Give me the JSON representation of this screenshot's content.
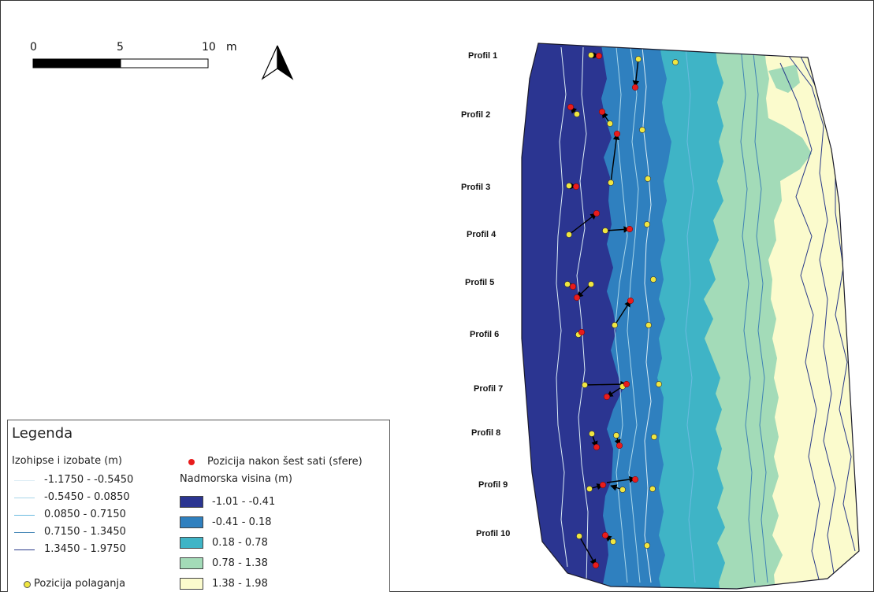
{
  "map": {
    "profiles": [
      "Profil 1",
      "Profil 2",
      "Profil 3",
      "Profil 4",
      "Profil 5",
      "Profil 6",
      "Profil 7",
      "Profil 8",
      "Profil 9",
      "Profil 10"
    ],
    "scale_bar": {
      "ticks": [
        "0",
        "5",
        "10"
      ],
      "unit": "m"
    },
    "north_arrow_icon": "north-arrow-icon"
  },
  "legend": {
    "title": "Legenda",
    "contours": {
      "title": "Izohipse i izobate (m)",
      "items": [
        {
          "label": "-1.1750 - -0.5450",
          "color": "#dcedf5"
        },
        {
          "label": "-0.5450 - 0.0850",
          "color": "#a9d6ea"
        },
        {
          "label": "0.0850 - 0.7150",
          "color": "#6bbbe0"
        },
        {
          "label": "0.7150 - 1.3450",
          "color": "#4083b4"
        },
        {
          "label": "1.3450 - 1.9750",
          "color": "#2a3b8a"
        }
      ]
    },
    "deploy": {
      "label": "Pozicija polaganja",
      "color": "#f0e640"
    },
    "after": {
      "label": "Pozicija nakon šest sati (sfere)",
      "color": "#e81c1c"
    },
    "elevation": {
      "title": "Nadmorska visina (m)",
      "items": [
        {
          "label": "-1.01 - -0.41",
          "color": "#2b3591"
        },
        {
          "label": "-0.41 - 0.18",
          "color": "#2f80bf"
        },
        {
          "label": "0.18 - 0.78",
          "color": "#3fb4c6"
        },
        {
          "label": "0.78 - 1.38",
          "color": "#a3dbb8"
        },
        {
          "label": "1.38 - 1.98",
          "color": "#fbfbcd"
        }
      ]
    }
  }
}
